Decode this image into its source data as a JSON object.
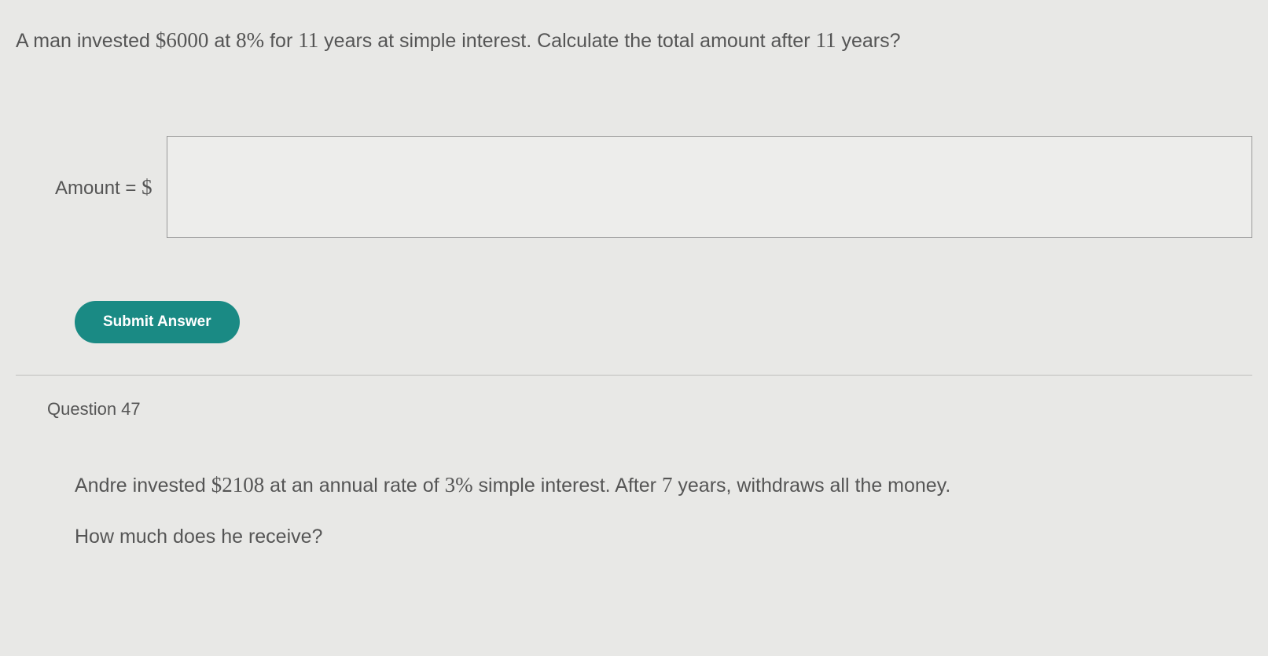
{
  "question1": {
    "text_parts": {
      "p1": "A man invested ",
      "principal": "$6000",
      "p2": " at ",
      "rate": "8%",
      "p3": " for ",
      "years1": "11",
      "p4": " years at simple interest. Calculate the total amount after ",
      "years2": "11",
      "p5": " years?"
    },
    "answer_label": "Amount = ",
    "currency_symbol": "$",
    "input_value": "",
    "submit_label": "Submit Answer"
  },
  "question2": {
    "header": "Question 47",
    "text_parts": {
      "p1": "Andre invested ",
      "principal": "$2108",
      "p2": " at an annual rate of ",
      "rate": "3%",
      "p3": " simple interest. After ",
      "years": "7",
      "p4": " years, withdraws all the money."
    },
    "followup": "How much does he receive?"
  },
  "colors": {
    "background": "#e8e8e6",
    "text": "#555555",
    "button_bg": "#1a8a84",
    "button_text": "#ffffff",
    "input_border": "#999999",
    "divider": "#c0c0be"
  }
}
